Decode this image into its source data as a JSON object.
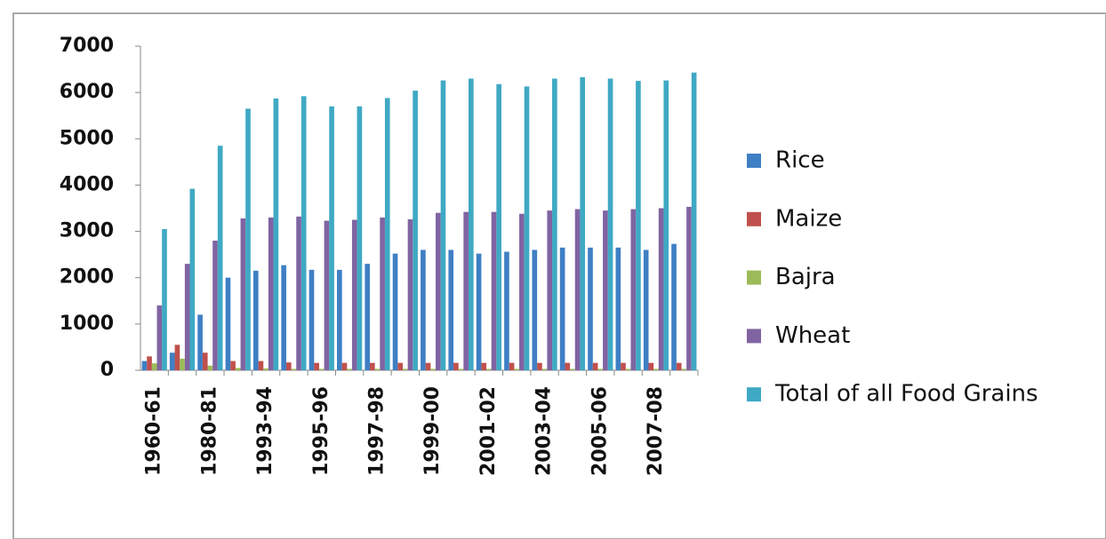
{
  "chart_data": {
    "type": "bar",
    "categories": [
      "1960-61",
      null,
      "1980-81",
      null,
      "1993-94",
      null,
      "1995-96",
      null,
      "1997-98",
      null,
      "1999-00",
      null,
      "2001-02",
      null,
      "2003-04",
      null,
      "2005-06",
      null,
      "2007-08",
      null
    ],
    "series": [
      {
        "name": "Rice",
        "color": "#3f7fc4",
        "values": [
          200,
          380,
          1200,
          2000,
          2150,
          2270,
          2170,
          2170,
          2300,
          2520,
          2600,
          2600,
          2520,
          2560,
          2600,
          2650,
          2650,
          2650,
          2600,
          2730
        ]
      },
      {
        "name": "Maize",
        "color": "#c0504d",
        "values": [
          300,
          550,
          380,
          200,
          200,
          170,
          160,
          160,
          160,
          160,
          160,
          160,
          160,
          160,
          160,
          160,
          160,
          160,
          160,
          160
        ]
      },
      {
        "name": "Bajra",
        "color": "#9bbb59",
        "values": [
          150,
          250,
          100,
          50,
          40,
          30,
          30,
          30,
          30,
          30,
          30,
          30,
          30,
          30,
          30,
          30,
          30,
          30,
          30,
          30
        ]
      },
      {
        "name": "Wheat",
        "color": "#8064a2",
        "values": [
          1400,
          2300,
          2800,
          3280,
          3300,
          3320,
          3230,
          3250,
          3300,
          3260,
          3400,
          3420,
          3420,
          3380,
          3450,
          3480,
          3450,
          3480,
          3500,
          3530
        ]
      },
      {
        "name": "Total of all Food Grains",
        "color": "#3fa9c4",
        "values": [
          3050,
          3920,
          4850,
          5650,
          5870,
          5920,
          5700,
          5700,
          5880,
          6040,
          6260,
          6300,
          6180,
          6130,
          6300,
          6330,
          6300,
          6250,
          6260,
          6430
        ]
      }
    ],
    "ylim": [
      0,
      7000
    ],
    "yticks": [
      0,
      1000,
      2000,
      3000,
      4000,
      5000,
      6000,
      7000
    ],
    "legend": "right"
  }
}
